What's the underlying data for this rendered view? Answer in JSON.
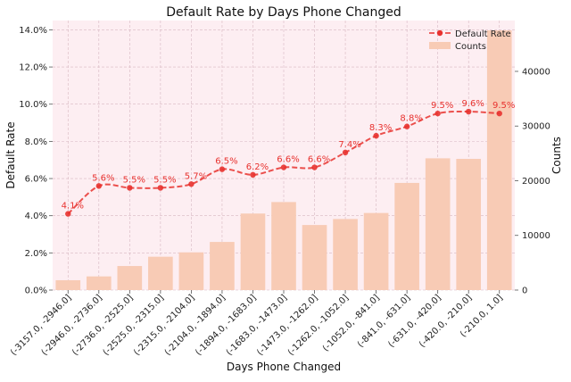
{
  "chart_data": {
    "type": "bar+line",
    "title": "Default Rate by Days Phone Changed",
    "xlabel": "Days Phone Changed",
    "ylabel_left": "Default Rate",
    "ylabel_right": "Counts",
    "categories": [
      "(-3157.0, -2946.0]",
      "(-2946.0, -2736.0]",
      "(-2736.0, -2525.0]",
      "(-2525.0, -2315.0]",
      "(-2315.0, -2104.0]",
      "(-2104.0, -1894.0]",
      "(-1894.0, -1683.0]",
      "(-1683.0, -1473.0]",
      "(-1473.0, -1262.0]",
      "(-1262.0, -1052.0]",
      "(-1052.0, -841.0]",
      "(-841.0, -631.0]",
      "(-631.0, -420.0]",
      "(-420.0, -210.0]",
      "(-210.0, 1.0]"
    ],
    "series": [
      {
        "name": "Default Rate",
        "axis": "left",
        "kind": "line",
        "values": [
          4.1,
          5.6,
          5.5,
          5.5,
          5.7,
          6.5,
          6.2,
          6.6,
          6.6,
          7.4,
          8.3,
          8.8,
          9.5,
          9.6,
          9.5
        ],
        "labels": [
          "4.1%",
          "5.6%",
          "5.5%",
          "5.5%",
          "5.7%",
          "6.5%",
          "6.2%",
          "6.6%",
          "6.6%",
          "7.4%",
          "8.3%",
          "8.8%",
          "9.5%",
          "9.6%",
          "9.5%"
        ],
        "color": "#e8322f"
      },
      {
        "name": "Counts",
        "axis": "right",
        "kind": "bar",
        "values": [
          1800,
          2500,
          4400,
          6100,
          6900,
          8800,
          14000,
          16100,
          11900,
          13000,
          14100,
          19600,
          24100,
          24000,
          47500
        ],
        "color": "#f8cbb5"
      }
    ],
    "y_left": {
      "min": 0,
      "max": 14.5,
      "ticks": [
        0,
        2,
        4,
        6,
        8,
        10,
        12,
        14
      ],
      "tick_labels": [
        "0.0%",
        "2.0%",
        "4.0%",
        "6.0%",
        "8.0%",
        "10.0%",
        "12.0%",
        "14.0%"
      ]
    },
    "y_right": {
      "min": 0,
      "max": 49300,
      "ticks": [
        0,
        10000,
        20000,
        30000,
        40000
      ],
      "tick_labels": [
        "0",
        "10000",
        "20000",
        "30000",
        "40000"
      ]
    },
    "grid": true,
    "legend_position": "top-right",
    "background_color": "#fdeef2",
    "grid_color": "#d8b8c2"
  }
}
